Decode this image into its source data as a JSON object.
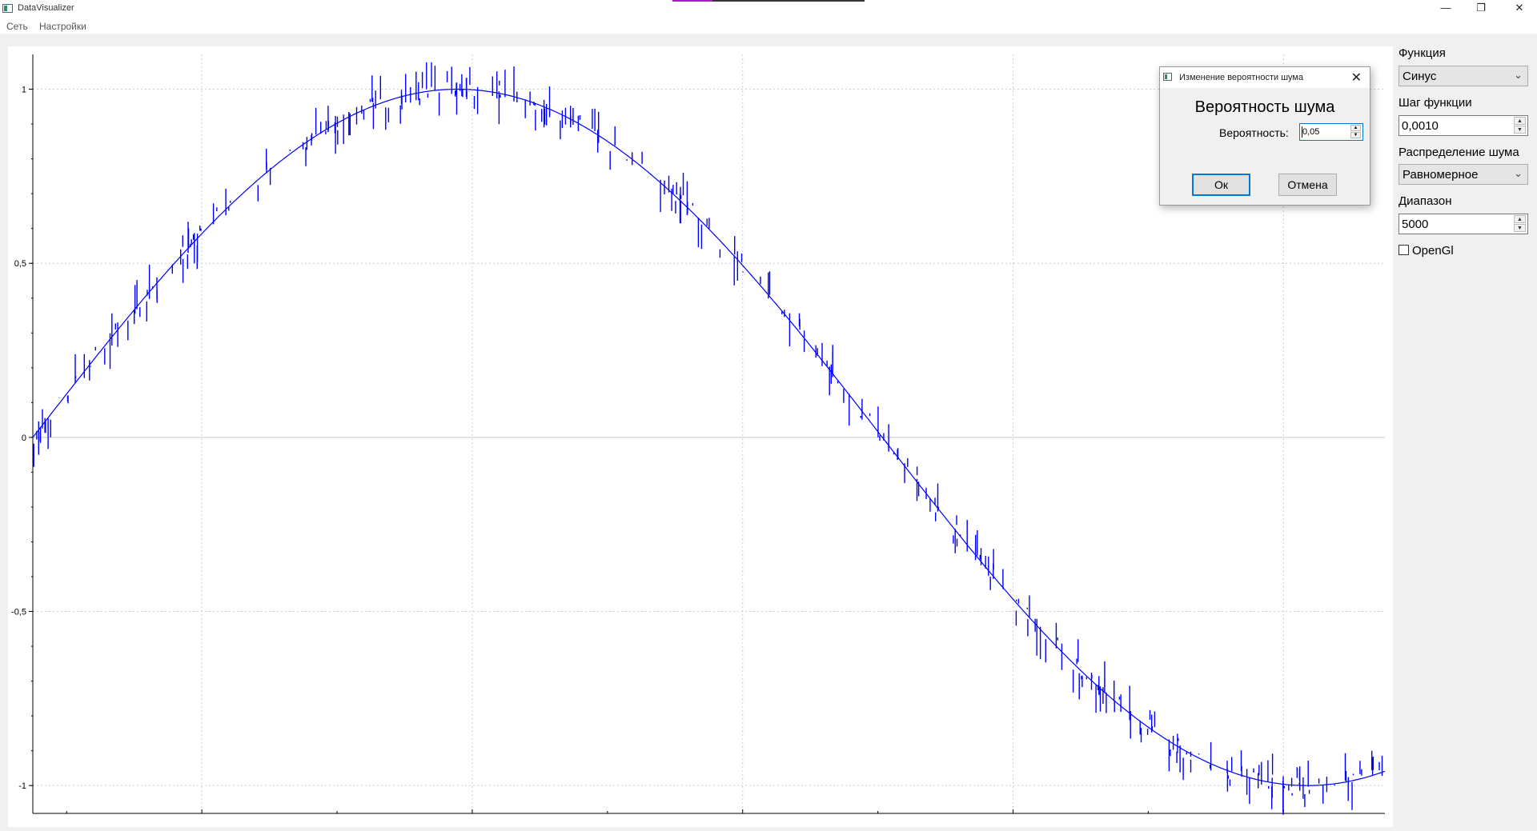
{
  "window": {
    "title": "DataVisualizer",
    "minimize_glyph": "—",
    "restore_glyph": "❐",
    "close_glyph": "✕"
  },
  "menu": {
    "items": [
      "Сеть",
      "Настройки"
    ]
  },
  "panel": {
    "function_label": "Функция",
    "function_value": "Синус",
    "step_label": "Шаг функции",
    "step_value": "0,0010",
    "noise_dist_label": "Распределение шума",
    "noise_dist_value": "Равномерное",
    "range_label": "Диапазон",
    "range_value": "5000",
    "opengl_label": "OpenGl",
    "opengl_checked": false
  },
  "dialog": {
    "title": "Изменение вероятности шума",
    "heading": "Вероятность шума",
    "field_label": "Вероятность:",
    "field_value": "0,05",
    "ok_label": "Ок",
    "cancel_label": "Отмена"
  },
  "chart_data": {
    "type": "line",
    "title": "",
    "xlabel": "",
    "ylabel": "",
    "xlim": [
      0,
      5
    ],
    "ylim": [
      -1.08,
      1.1
    ],
    "y_ticks": [
      1,
      0.5,
      0,
      -0.5,
      -1
    ],
    "y_tick_labels": [
      "1",
      "0,5",
      "0",
      "-0,5",
      "-1"
    ],
    "x_tick_labels": [],
    "grid": true,
    "series": [
      {
        "function": "sin(x)",
        "color": "#0000ff",
        "noise": "vertical spikes"
      }
    ],
    "colors": {
      "line": "#0000ff",
      "grid": "#cccccc",
      "zero_line": "#c8c8c8"
    }
  }
}
